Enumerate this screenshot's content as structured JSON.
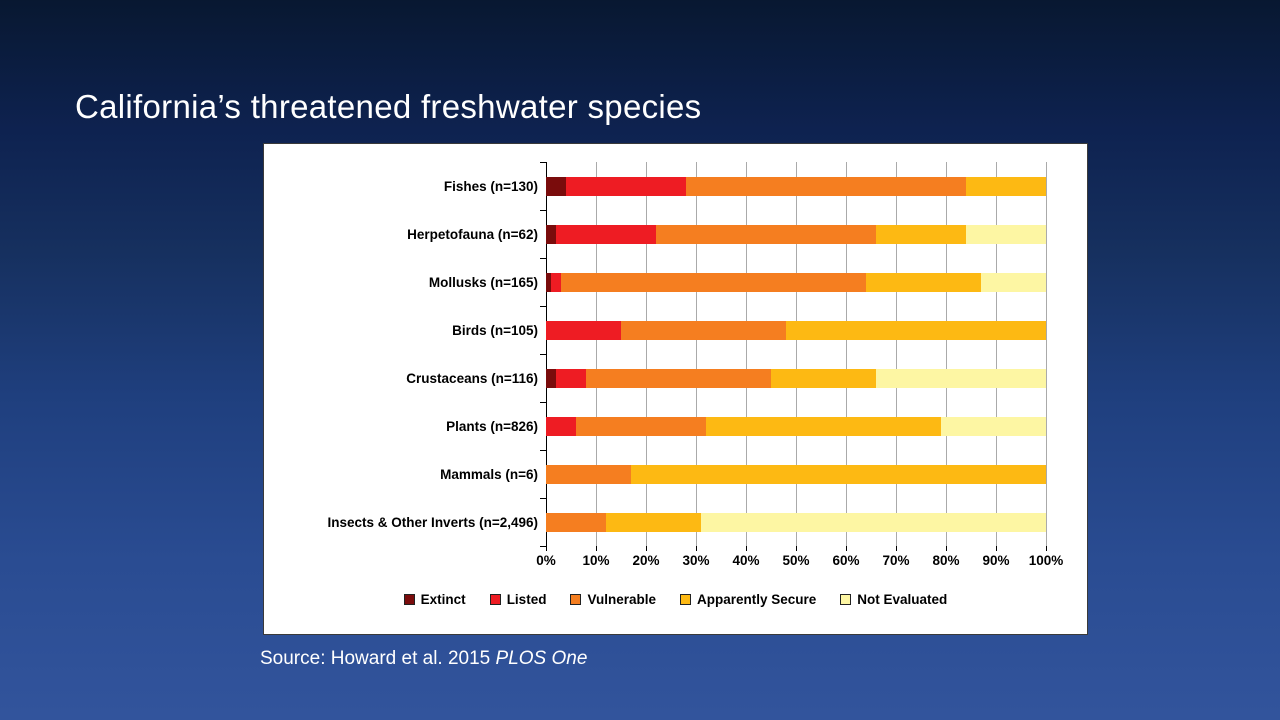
{
  "slide": {
    "title": "California’s threatened freshwater species",
    "source_prefix": "Source: Howard et al. 2015 ",
    "source_italic": "PLOS One"
  },
  "chart_data": {
    "type": "bar",
    "stacked": true,
    "orientation": "horizontal",
    "unit": "%",
    "xlim": [
      0,
      100
    ],
    "grid": true,
    "legend_position": "bottom",
    "categories": [
      "Fishes (n=130)",
      "Herpetofauna (n=62)",
      "Mollusks (n=165)",
      "Birds (n=105)",
      "Crustaceans (n=116)",
      "Plants (n=826)",
      "Mammals (n=6)",
      "Insects & Other Inverts (n=2,496)"
    ],
    "series": [
      {
        "name": "Extinct",
        "color": "#7a0c0c",
        "values": [
          4,
          2,
          1,
          0,
          2,
          0,
          0,
          0
        ]
      },
      {
        "name": "Listed",
        "color": "#ee1c23",
        "values": [
          24,
          20,
          2,
          15,
          6,
          6,
          0,
          0
        ]
      },
      {
        "name": "Vulnerable",
        "color": "#f57e20",
        "values": [
          56,
          44,
          61,
          33,
          37,
          26,
          17,
          12
        ]
      },
      {
        "name": "Apparently Secure",
        "color": "#fdb913",
        "values": [
          16,
          18,
          23,
          52,
          21,
          47,
          83,
          19
        ]
      },
      {
        "name": "Not Evaluated",
        "color": "#fdf6a3",
        "values": [
          0,
          16,
          13,
          0,
          34,
          21,
          0,
          69
        ]
      }
    ],
    "x_ticks": [
      "0%",
      "10%",
      "20%",
      "30%",
      "40%",
      "50%",
      "60%",
      "70%",
      "80%",
      "90%",
      "100%"
    ]
  }
}
